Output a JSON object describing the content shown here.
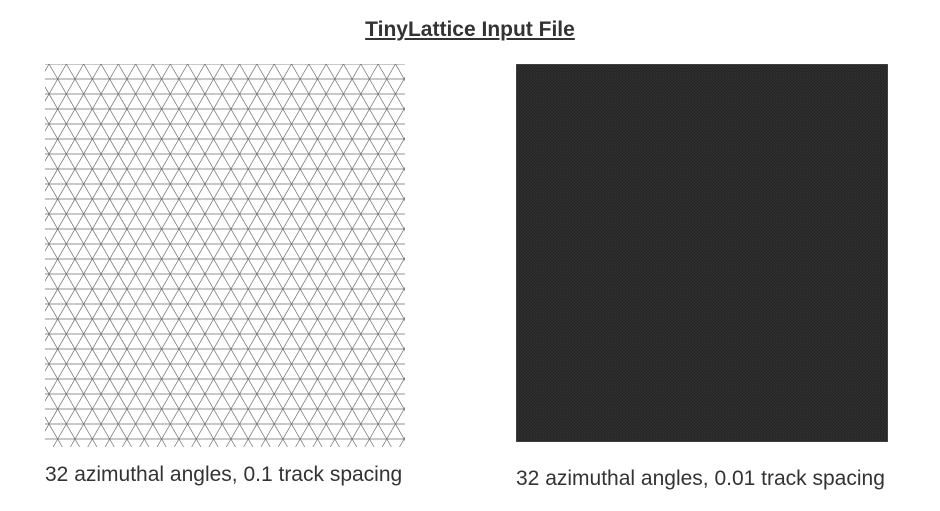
{
  "slide": {
    "title": "TinyLattice Input File"
  },
  "panels": [
    {
      "caption": "32 azimuthal angles, 0.1 track spacing",
      "background": "#ffffff",
      "line_color": "#6f6f6f"
    },
    {
      "caption": "32 azimuthal angles, 0.01 track spacing",
      "background": "#1f1f1f",
      "line_color": "#5a5a5a"
    }
  ]
}
